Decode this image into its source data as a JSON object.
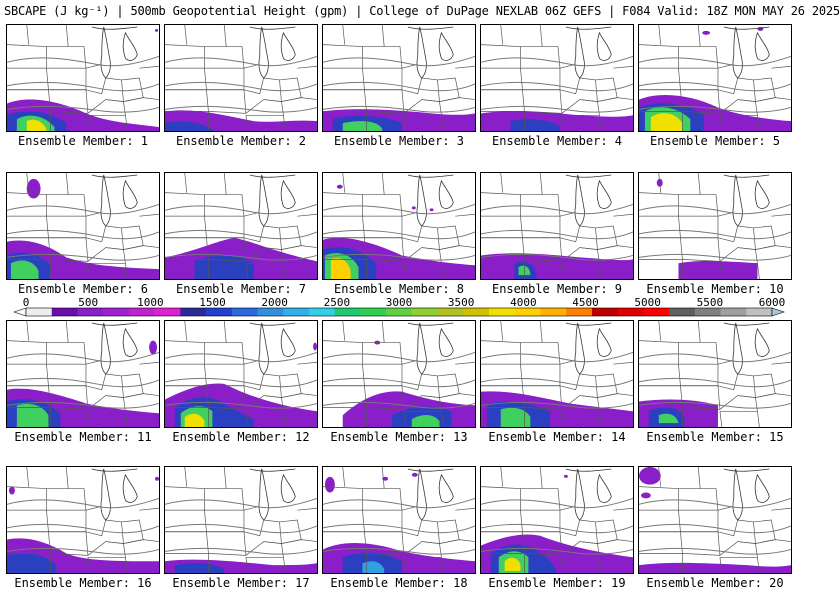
{
  "title": "SBCAPE (J kg⁻¹) | 500mb Geopotential Height (gpm) | College of DuPage NEXLAB 06Z GEFS | F084 Valid: 18Z MON MAY 26 2025",
  "colorbar": {
    "tick_labels": [
      "0",
      "500",
      "1000",
      "1500",
      "2000",
      "2500",
      "3000",
      "3500",
      "4000",
      "4500",
      "5000",
      "5500",
      "6000"
    ],
    "range": [
      0,
      6000
    ],
    "colors": [
      "#eeeeee",
      "#6a0dad",
      "#8a1ec8",
      "#a020d0",
      "#c020d0",
      "#e020d0",
      "#2a2a9a",
      "#2040d0",
      "#2a6ae0",
      "#3090e0",
      "#30b0e8",
      "#30d0e8",
      "#20c870",
      "#30d050",
      "#60d040",
      "#90d030",
      "#b0c020",
      "#d0c000",
      "#f0e000",
      "#ffd000",
      "#ffb000",
      "#ff8000",
      "#c00000",
      "#e00000",
      "#ff0000",
      "#606060",
      "#808080",
      "#a0a0a0",
      "#c0c0c0"
    ]
  },
  "members": [
    {
      "label": "Ensemble Member: 1"
    },
    {
      "label": "Ensemble Member: 2"
    },
    {
      "label": "Ensemble Member: 3"
    },
    {
      "label": "Ensemble Member: 4"
    },
    {
      "label": "Ensemble Member: 5"
    },
    {
      "label": "Ensemble Member: 6"
    },
    {
      "label": "Ensemble Member: 7"
    },
    {
      "label": "Ensemble Member: 8"
    },
    {
      "label": "Ensemble Member: 9"
    },
    {
      "label": "Ensemble Member: 10"
    },
    {
      "label": "Ensemble Member: 11"
    },
    {
      "label": "Ensemble Member: 12"
    },
    {
      "label": "Ensemble Member: 13"
    },
    {
      "label": "Ensemble Member: 14"
    },
    {
      "label": "Ensemble Member: 15"
    },
    {
      "label": "Ensemble Member: 16"
    },
    {
      "label": "Ensemble Member: 17"
    },
    {
      "label": "Ensemble Member: 18"
    },
    {
      "label": "Ensemble Member: 19"
    },
    {
      "label": "Ensemble Member: 20"
    }
  ]
}
